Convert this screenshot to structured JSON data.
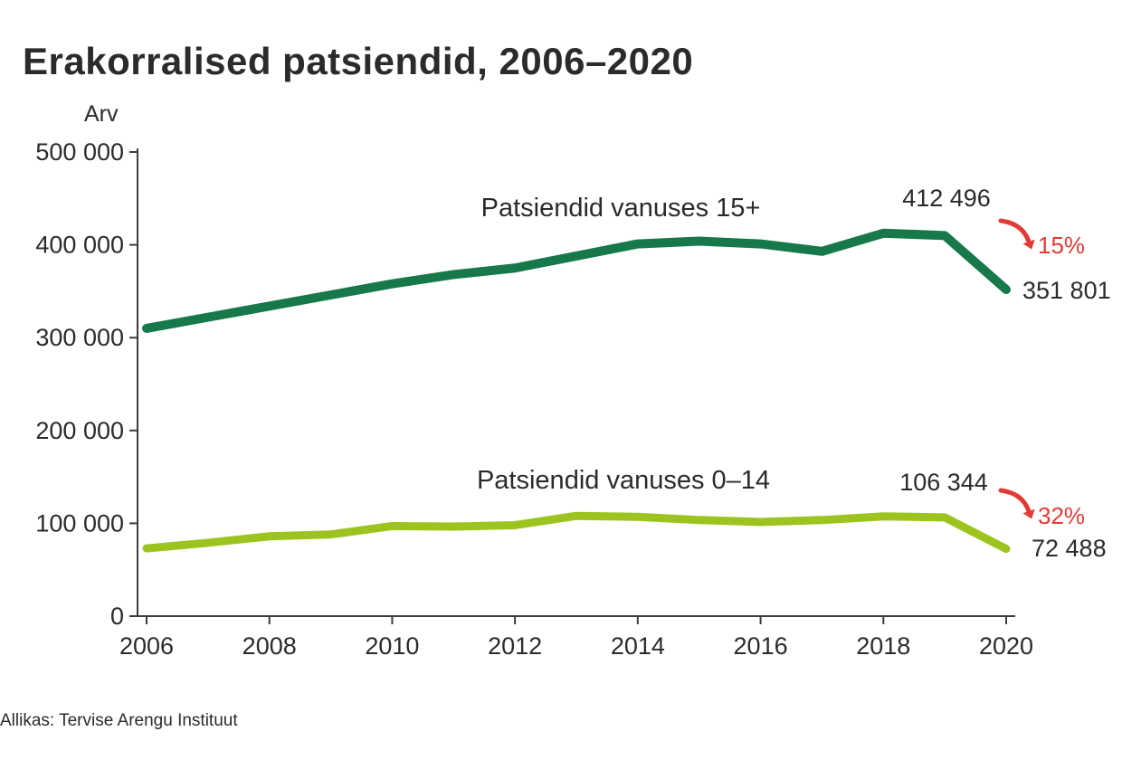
{
  "title": "Erakorralised patsiendid, 2006–2020",
  "source": "Allikas: Tervise Arengu Instituut",
  "chart_data": {
    "type": "line",
    "title": "Erakorralised patsiendid, 2006–2020",
    "ylabel": "Arv",
    "xlabel": "",
    "x": [
      2006,
      2007,
      2008,
      2009,
      2010,
      2011,
      2012,
      2013,
      2014,
      2015,
      2016,
      2017,
      2018,
      2019,
      2020
    ],
    "x_tick_years": [
      2006,
      2008,
      2010,
      2012,
      2014,
      2016,
      2018,
      2020
    ],
    "x_tick_labels": [
      "2006",
      "2008",
      "2010",
      "2012",
      "2014",
      "2016",
      "2018",
      "2020"
    ],
    "ylim": [
      0,
      500000
    ],
    "y_ticks": [
      0,
      100000,
      200000,
      300000,
      400000,
      500000
    ],
    "y_tick_labels": [
      "0",
      "100 000",
      "200 000",
      "300 000",
      "400 000",
      "500 000"
    ],
    "grid": false,
    "legend_position": "inline-annotations",
    "axis_color": "#3d3d3d",
    "accent_red": "#e23b36",
    "series": [
      {
        "name": "Patsiendid vanuses 15+",
        "color": "#17784a",
        "line_width": 10,
        "values": [
          310000,
          322000,
          334000,
          346000,
          358000,
          368000,
          375000,
          388000,
          401000,
          404000,
          401000,
          393000,
          412496,
          410000,
          351801
        ],
        "peak_label": "412 496",
        "end_label": "351 801",
        "change_label": "15%"
      },
      {
        "name": "Patsiendid vanuses 0–14",
        "color": "#9bc41e",
        "line_width": 9,
        "values": [
          73000,
          79000,
          86000,
          88000,
          97000,
          96500,
          98000,
          108000,
          107000,
          103500,
          101500,
          103500,
          107500,
          106344,
          72488
        ],
        "peak_label": "106 344",
        "end_label": "72 488",
        "change_label": "32%"
      }
    ]
  }
}
